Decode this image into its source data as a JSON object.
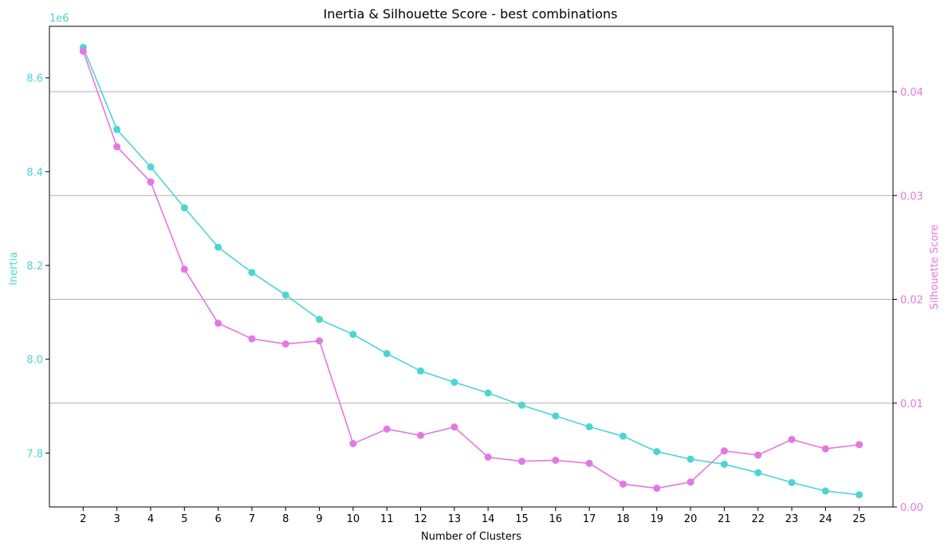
{
  "chart_data": {
    "type": "line",
    "title": "Inertia & Silhouette Score - best combinations",
    "xlabel": "Number of Clusters",
    "x": [
      2,
      3,
      4,
      5,
      6,
      7,
      8,
      9,
      10,
      11,
      12,
      13,
      14,
      15,
      16,
      17,
      18,
      19,
      20,
      21,
      22,
      23,
      24,
      25
    ],
    "grid": "horizontal (right axis)",
    "series": [
      {
        "name": "Inertia",
        "axis": "left",
        "color": "#4dd4d4",
        "values": [
          8.665,
          8.49,
          8.41,
          8.323,
          8.239,
          8.185,
          8.137,
          8.085,
          8.053,
          8.012,
          7.975,
          7.951,
          7.928,
          7.902,
          7.879,
          7.856,
          7.836,
          7.803,
          7.787,
          7.776,
          7.758,
          7.737,
          7.719,
          7.711
        ]
      },
      {
        "name": "Silhouette Score",
        "axis": "right",
        "color": "#e377e3",
        "values": [
          0.0439,
          0.0347,
          0.0313,
          0.0229,
          0.0177,
          0.0162,
          0.0157,
          0.016,
          0.0061,
          0.0075,
          0.0069,
          0.0077,
          0.0048,
          0.0044,
          0.0045,
          0.0042,
          0.0022,
          0.0018,
          0.0024,
          0.0054,
          0.005,
          0.0065,
          0.0056,
          0.006
        ]
      }
    ],
    "left_axis": {
      "label": "Inertia",
      "offset_label": "1e6",
      "ylim": [
        7.685,
        8.71
      ],
      "ticks": [
        7.8,
        8.0,
        8.2,
        8.4,
        8.6
      ],
      "tick_labels": [
        "7.8",
        "8.0",
        "8.2",
        "8.4",
        "8.6"
      ],
      "color": "#4dd4d4"
    },
    "right_axis": {
      "label": "Silhouette Score",
      "ylim": [
        0.0,
        0.0463
      ],
      "ticks": [
        0.0,
        0.01,
        0.02,
        0.03,
        0.04
      ],
      "tick_labels": [
        "0.00",
        "0.01",
        "0.02",
        "0.03",
        "0.04"
      ],
      "color": "#e377e3"
    }
  }
}
